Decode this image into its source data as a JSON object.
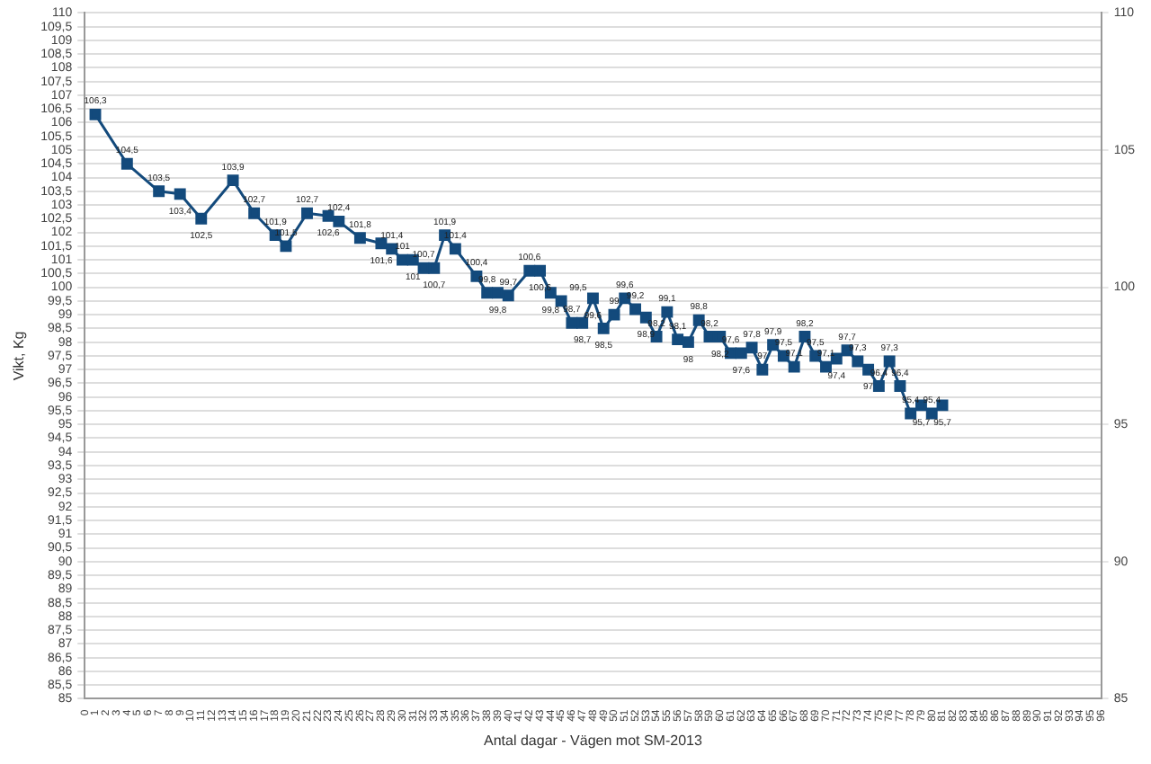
{
  "chart_data": {
    "type": "line",
    "xlabel": "Antal dagar - Vägen mot SM-2013",
    "ylabel": "Vikt, Kg",
    "x": [
      1,
      4,
      7,
      9,
      11,
      14,
      16,
      18,
      19,
      21,
      23,
      24,
      26,
      28,
      29,
      30,
      31,
      32,
      33,
      34,
      35,
      37,
      38,
      39,
      40,
      42,
      43,
      44,
      45,
      46,
      47,
      48,
      49,
      50,
      51,
      52,
      53,
      54,
      55,
      56,
      57,
      58,
      59,
      60,
      61,
      62,
      63,
      64,
      65,
      66,
      67,
      68,
      69,
      70,
      71,
      72,
      73,
      74,
      75,
      76,
      77,
      78,
      79,
      80,
      81
    ],
    "series": [
      {
        "color": "#134a7c",
        "value_labels": [
          "106,3",
          "104,5",
          "103,5",
          "103,4",
          "102,5",
          "103,9",
          "102,7",
          "101,9",
          "101,5",
          "102,7",
          "102,6",
          "102,4",
          "101,8",
          "101,6",
          "101,4",
          "101",
          "101",
          "100,7",
          "100,7",
          "101,9",
          "101,4",
          "100,4",
          "99,8",
          "99,8",
          "99,7",
          "100,6",
          "100,6",
          "99,8",
          "99,5",
          "98,7",
          "98,7",
          "99,6",
          "98,5",
          "99",
          "99,6",
          "99,2",
          "98,9",
          "98,2",
          "99,1",
          "98,1",
          "98",
          "98,8",
          "98,2",
          "98,2",
          "97,6",
          "97,6",
          "97,8",
          "97",
          "97,9",
          "97,5",
          "97,1",
          "98,2",
          "97,5",
          "97,1",
          "97,4",
          "97,7",
          "97,3",
          "97",
          "96,4",
          "97,3",
          "96,4",
          "95,4",
          "95,7",
          "95,4",
          "95,7"
        ],
        "values": [
          106.3,
          104.5,
          103.5,
          103.4,
          102.5,
          103.9,
          102.7,
          101.9,
          101.5,
          102.7,
          102.6,
          102.4,
          101.8,
          101.6,
          101.4,
          101,
          101,
          100.7,
          100.7,
          101.9,
          101.4,
          100.4,
          99.8,
          99.8,
          99.7,
          100.6,
          100.6,
          99.8,
          99.5,
          98.7,
          98.7,
          99.6,
          98.5,
          99,
          99.6,
          99.2,
          98.9,
          98.2,
          99.1,
          98.1,
          98,
          98.8,
          98.2,
          98.2,
          97.6,
          97.6,
          97.8,
          97,
          97.9,
          97.5,
          97.1,
          98.2,
          97.5,
          97.1,
          97.4,
          97.7,
          97.3,
          97,
          96.4,
          97.3,
          96.4,
          95.4,
          95.7,
          95.4,
          95.7
        ]
      }
    ],
    "xlim": [
      0,
      96
    ],
    "xticks": [
      0,
      1,
      2,
      3,
      4,
      5,
      6,
      7,
      8,
      9,
      10,
      11,
      12,
      13,
      14,
      15,
      16,
      17,
      18,
      19,
      20,
      21,
      22,
      23,
      24,
      25,
      26,
      27,
      28,
      29,
      30,
      31,
      32,
      33,
      34,
      35,
      36,
      37,
      38,
      39,
      40,
      41,
      42,
      43,
      44,
      45,
      46,
      47,
      48,
      49,
      50,
      51,
      52,
      53,
      54,
      55,
      56,
      57,
      58,
      59,
      60,
      61,
      62,
      63,
      64,
      65,
      66,
      67,
      68,
      69,
      70,
      71,
      72,
      73,
      74,
      75,
      76,
      77,
      78,
      79,
      80,
      81,
      82,
      83,
      84,
      85,
      86,
      87,
      88,
      89,
      90,
      91,
      92,
      93,
      94,
      95,
      96
    ],
    "ylim": [
      85,
      110
    ],
    "yticks": [
      85,
      {
        "value": 85.5,
        "label": "85,5"
      },
      86,
      {
        "value": 86.5,
        "label": "86,5"
      },
      87,
      {
        "value": 87.5,
        "label": "87,5"
      },
      88,
      {
        "value": 88.5,
        "label": "88,5"
      },
      89,
      {
        "value": 89.5,
        "label": "89,5"
      },
      90,
      {
        "value": 90.5,
        "label": "90,5"
      },
      91,
      {
        "value": 91.5,
        "label": "91,5"
      },
      92,
      {
        "value": 92.5,
        "label": "92,5"
      },
      93,
      {
        "value": 93.5,
        "label": "93,5"
      },
      94,
      {
        "value": 94.5,
        "label": "94,5"
      },
      95,
      {
        "value": 95.5,
        "label": "95,5"
      },
      96,
      {
        "value": 96.5,
        "label": "96,5"
      },
      97,
      {
        "value": 97.5,
        "label": "97,5"
      },
      98,
      {
        "value": 98.5,
        "label": "98,5"
      },
      99,
      {
        "value": 99.5,
        "label": "99,5"
      },
      100,
      {
        "value": 100.5,
        "label": "100,5"
      },
      101,
      {
        "value": 101.5,
        "label": "101,5"
      },
      102,
      {
        "value": 102.5,
        "label": "102,5"
      },
      103,
      {
        "value": 103.5,
        "label": "103,5"
      },
      104,
      {
        "value": 104.5,
        "label": "104,5"
      },
      105,
      {
        "value": 105.5,
        "label": "105,5"
      },
      106,
      {
        "value": 106.5,
        "label": "106,5"
      },
      107,
      {
        "value": 107.5,
        "label": "107,5"
      },
      108,
      {
        "value": 108.5,
        "label": "108,5"
      },
      109,
      {
        "value": 109.5,
        "label": "109,5"
      },
      110
    ],
    "y2lim": [
      85,
      110
    ],
    "y2ticks": [
      85,
      90,
      95,
      100,
      105,
      110
    ],
    "grid": "y",
    "legend": false,
    "marker": "square",
    "line_style": "solid"
  }
}
